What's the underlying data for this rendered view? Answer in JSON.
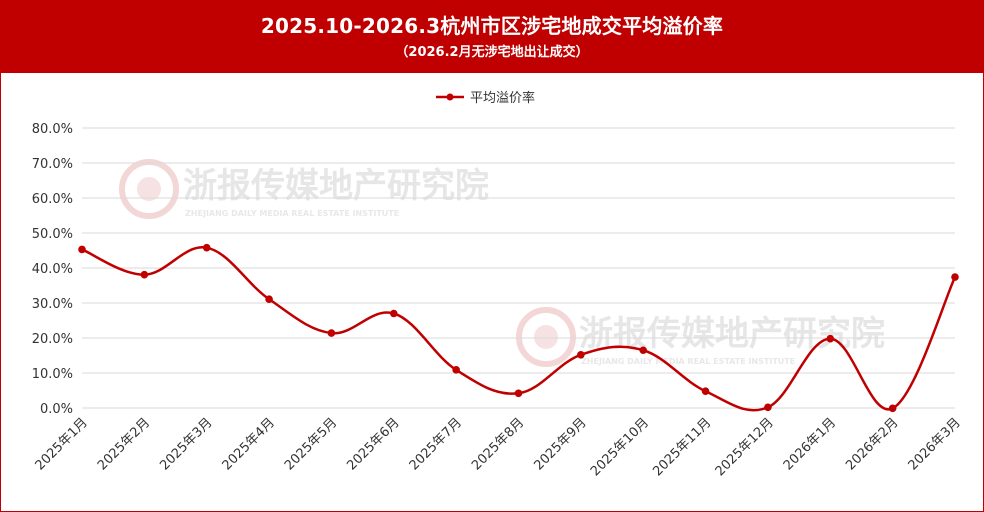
{
  "header": {
    "title": "2025.10-2026.3杭州市区涉宅地成交平均溢价率",
    "subtitle": "（2026.2月无涉宅地出让成交）"
  },
  "watermark": {
    "text": "浙报传媒地产研究院",
    "subtext": "ZHEJIANG DAILY MEDIA REAL ESTATE INSTITUTE"
  },
  "colors": {
    "header_bg": "#c00000",
    "series": "#c00000",
    "grid": "#d9d9d9"
  },
  "chart_data": {
    "type": "line",
    "smooth": true,
    "legend": "top-center",
    "grid": true,
    "categories": [
      "2025年1月",
      "2025年2月",
      "2025年3月",
      "2025年4月",
      "2025年5月",
      "2025年6月",
      "2025年7月",
      "2025年8月",
      "2025年9月",
      "2025年10月",
      "2025年11月",
      "2025年12月",
      "2026年1月",
      "2026年2月",
      "2026年3月"
    ],
    "series": [
      {
        "name": "平均溢价率",
        "color": "#c00000",
        "values": [
          45.3,
          38.1,
          45.8,
          31.1,
          21.4,
          27.0,
          10.9,
          4.2,
          15.2,
          16.5,
          4.8,
          0.2,
          19.8,
          -0.1,
          37.4
        ]
      }
    ],
    "ylim": [
      0,
      80
    ],
    "yticks": [
      0,
      10,
      20,
      30,
      40,
      50,
      60,
      70,
      80
    ],
    "ytick_labels": [
      "0.0%",
      "10.0%",
      "20.0%",
      "30.0%",
      "40.0%",
      "50.0%",
      "60.0%",
      "70.0%",
      "80.0%"
    ],
    "xlabel": "",
    "ylabel": ""
  }
}
